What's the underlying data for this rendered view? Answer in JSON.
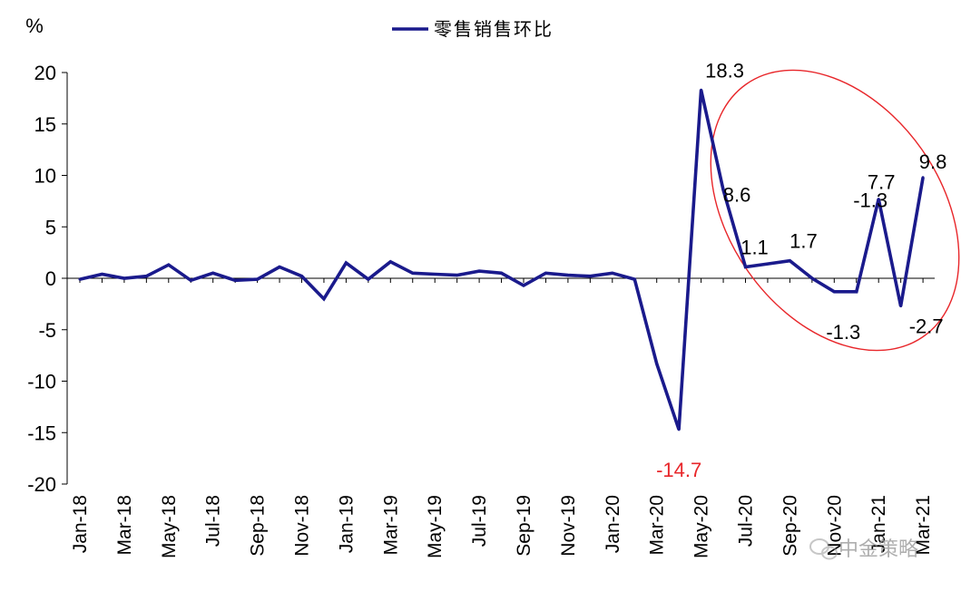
{
  "chart_data": {
    "type": "line",
    "unit_label": "%",
    "legend_position": "top-center",
    "ylim": [
      -20,
      20
    ],
    "yticks": [
      20,
      15,
      10,
      5,
      0,
      -5,
      -10,
      -15,
      -20
    ],
    "x": [
      "Jan-18",
      "Feb-18",
      "Mar-18",
      "Apr-18",
      "May-18",
      "Jun-18",
      "Jul-18",
      "Aug-18",
      "Sep-18",
      "Oct-18",
      "Nov-18",
      "Dec-18",
      "Jan-19",
      "Feb-19",
      "Mar-19",
      "Apr-19",
      "May-19",
      "Jun-19",
      "Jul-19",
      "Aug-19",
      "Sep-19",
      "Oct-19",
      "Nov-19",
      "Dec-19",
      "Jan-20",
      "Feb-20",
      "Mar-20",
      "Apr-20",
      "May-20",
      "Jun-20",
      "Jul-20",
      "Aug-20",
      "Sep-20",
      "Oct-20",
      "Nov-20",
      "Dec-20",
      "Jan-21",
      "Feb-21",
      "Mar-21"
    ],
    "xtick_labels": [
      "Jan-18",
      "Mar-18",
      "May-18",
      "Jul-18",
      "Sep-18",
      "Nov-18",
      "Jan-19",
      "Mar-19",
      "May-19",
      "Jul-19",
      "Sep-19",
      "Nov-19",
      "Jan-20",
      "Mar-20",
      "May-20",
      "Jul-20",
      "Sep-20",
      "Nov-20",
      "Jan-21",
      "Mar-21"
    ],
    "series": [
      {
        "name": "零售销售环比",
        "color": "#1a1a8c",
        "values": [
          -0.1,
          0.4,
          0.0,
          0.2,
          1.3,
          -0.2,
          0.5,
          -0.2,
          -0.1,
          1.1,
          0.2,
          -2.0,
          1.5,
          -0.1,
          1.6,
          0.5,
          0.4,
          0.3,
          0.7,
          0.5,
          -0.7,
          0.5,
          0.3,
          0.2,
          0.5,
          -0.1,
          -8.3,
          -14.7,
          18.3,
          8.6,
          1.1,
          1.4,
          1.7,
          0.0,
          -1.3,
          -1.3,
          7.7,
          -2.7,
          9.8
        ]
      }
    ],
    "annotations": [
      {
        "text": "18.3",
        "color": "#000000"
      },
      {
        "text": "8.6",
        "color": "#000000"
      },
      {
        "text": "1.1",
        "color": "#000000"
      },
      {
        "text": "1.7",
        "color": "#000000"
      },
      {
        "text": "-1.3",
        "color": "#000000"
      },
      {
        "text": "7.7",
        "color": "#000000"
      },
      {
        "text": "-1.3",
        "color": "#000000"
      },
      {
        "text": "-2.7",
        "color": "#000000"
      },
      {
        "text": "9.8",
        "color": "#000000"
      },
      {
        "text": "-14.7",
        "color": "#e8262a"
      }
    ],
    "highlight_ellipse_color": "#e8262a"
  },
  "watermark": {
    "text": "中金策略",
    "icon": "wechat-icon"
  }
}
